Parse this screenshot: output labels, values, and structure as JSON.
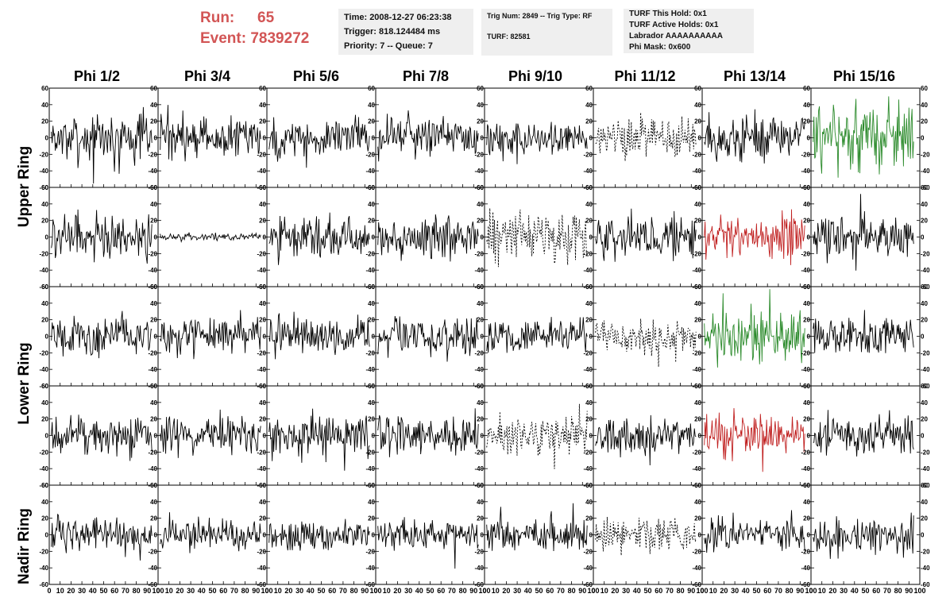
{
  "run": {
    "run_label": "Run:",
    "run_value": "65",
    "event_label": "Event:",
    "event_value": "7839272"
  },
  "info_time": {
    "time": "Time: 2008-12-27 06:23:38",
    "trigger": "Trigger: 818.124484 ms",
    "priority": "Priority: 7 -- Queue: 7"
  },
  "info_trig": {
    "trig": "Trig Num: 2849 -- Trig Type: RF",
    "turf": "TURF: 82581"
  },
  "info_turf": {
    "hold": "TURF This Hold: 0x1",
    "active": "TURF Active Holds: 0x1",
    "labrador": "Labrador AAAAAAAAAA",
    "phimask": "Phi Mask: 0x600"
  },
  "columns": [
    "Phi 1/2",
    "Phi 3/4",
    "Phi 5/6",
    "Phi 7/8",
    "Phi 9/10",
    "Phi 11/12",
    "Phi 13/14",
    "Phi 15/16"
  ],
  "rings": {
    "upper": "Upper Ring",
    "lower": "Lower Ring",
    "nadir": "Nadir Ring"
  },
  "chart_data": {
    "type": "line",
    "title": "",
    "xlabel": "",
    "ylabel": "",
    "xlim": [
      0,
      100
    ],
    "ylim": [
      -60,
      60
    ],
    "y_ticks": [
      -60,
      -40,
      -20,
      0,
      20,
      40,
      60
    ],
    "x_ticks": [
      0,
      10,
      20,
      30,
      40,
      50,
      60,
      70,
      80,
      90,
      100
    ],
    "x_tick_labels": [
      "0",
      "10",
      "20",
      "30",
      "40",
      "50",
      "60",
      "70",
      "80",
      "90",
      "100"
    ],
    "rows": 5,
    "cols": 8,
    "trace_styles": {
      "solid": "#000000",
      "dashed": "#000000",
      "green": "#2a8a2a",
      "red": "#c02020"
    },
    "panels": [
      [
        "solid",
        "solid",
        "solid",
        "solid",
        "solid",
        "dashed",
        "solid",
        "green"
      ],
      [
        "solid",
        "solid",
        "solid",
        "solid",
        "dashed",
        "solid",
        "red",
        "solid"
      ],
      [
        "solid",
        "solid",
        "solid",
        "solid",
        "solid",
        "dashed",
        "green",
        "solid"
      ],
      [
        "solid",
        "solid",
        "solid",
        "solid",
        "dashed",
        "solid",
        "red",
        "solid"
      ],
      [
        "solid",
        "solid",
        "solid",
        "solid",
        "solid",
        "dashed",
        "solid",
        "solid"
      ]
    ],
    "amplitudes": [
      [
        22,
        18,
        20,
        18,
        18,
        18,
        20,
        30
      ],
      [
        22,
        3,
        20,
        20,
        22,
        20,
        22,
        20
      ],
      [
        18,
        18,
        18,
        18,
        16,
        18,
        26,
        20
      ],
      [
        18,
        18,
        18,
        18,
        18,
        18,
        20,
        18
      ],
      [
        16,
        14,
        14,
        16,
        16,
        16,
        14,
        18
      ]
    ]
  }
}
